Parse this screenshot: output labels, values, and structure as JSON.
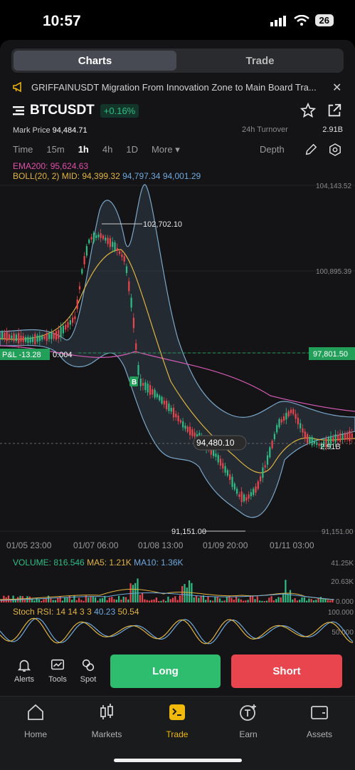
{
  "status": {
    "time": "10:57",
    "battery": "26"
  },
  "tabs_top": {
    "charts": "Charts",
    "trade": "Trade"
  },
  "notice": {
    "text": "GRIFFAINUSDT  Migration From Innovation Zone to Main Board Tra..."
  },
  "ticker": {
    "symbol": "BTCUSDT",
    "change": "+0.16%",
    "mark_price_label": "Mark Price",
    "mark_price": "94,484.71",
    "turnover_label": "24h Turnover",
    "turnover_value": "2.91B"
  },
  "timeframes": [
    "Time",
    "15m",
    "1h",
    "4h",
    "1D",
    "More ▾"
  ],
  "active_timeframe": "1h",
  "depth_label": "Depth",
  "indicators": {
    "ema": "EMA200: 95,624.63",
    "boll_label": "BOLL(20, 2) MID: 94,399.32",
    "boll_ub": "94,797.34",
    "boll_lb": "94,001.29"
  },
  "price_axis": [
    "104,143.52",
    "100,895.39",
    "97,801.50",
    "91,151.00"
  ],
  "labels": {
    "high": "102,702.10",
    "low": "91,151.00",
    "current": "94,480.10",
    "last_price": "97,801.50",
    "pnl": "P&L -13.28",
    "pnl_qty": "0.004",
    "buy_marker": "B",
    "right_price": "2.91B"
  },
  "time_axis": [
    "01/05 23:00",
    "01/07 06:00",
    "01/08 13:00",
    "01/09 20:00",
    "01/11 03:00"
  ],
  "volume": {
    "label": "VOLUME: 816.546",
    "ma5": "MA5: 1.21K",
    "ma10": "MA10: 1.36K",
    "axis_top": "41.25K",
    "axis_mid": "20.63K",
    "axis_bot": "0.000"
  },
  "stoch": {
    "label": "Stoch RSI: 14 14 3 3",
    "k": "40.23",
    "d": "50.54",
    "axis_top": "100.000",
    "axis_mid": "50.000"
  },
  "tools": [
    "Alerts",
    "Tools",
    "Spot"
  ],
  "actions": {
    "long": "Long",
    "short": "Short"
  },
  "nav": [
    "Home",
    "Markets",
    "Trade",
    "Earn",
    "Assets"
  ],
  "colors": {
    "up": "#2ebd85",
    "down": "#e8454f",
    "accent": "#f0b90b"
  }
}
